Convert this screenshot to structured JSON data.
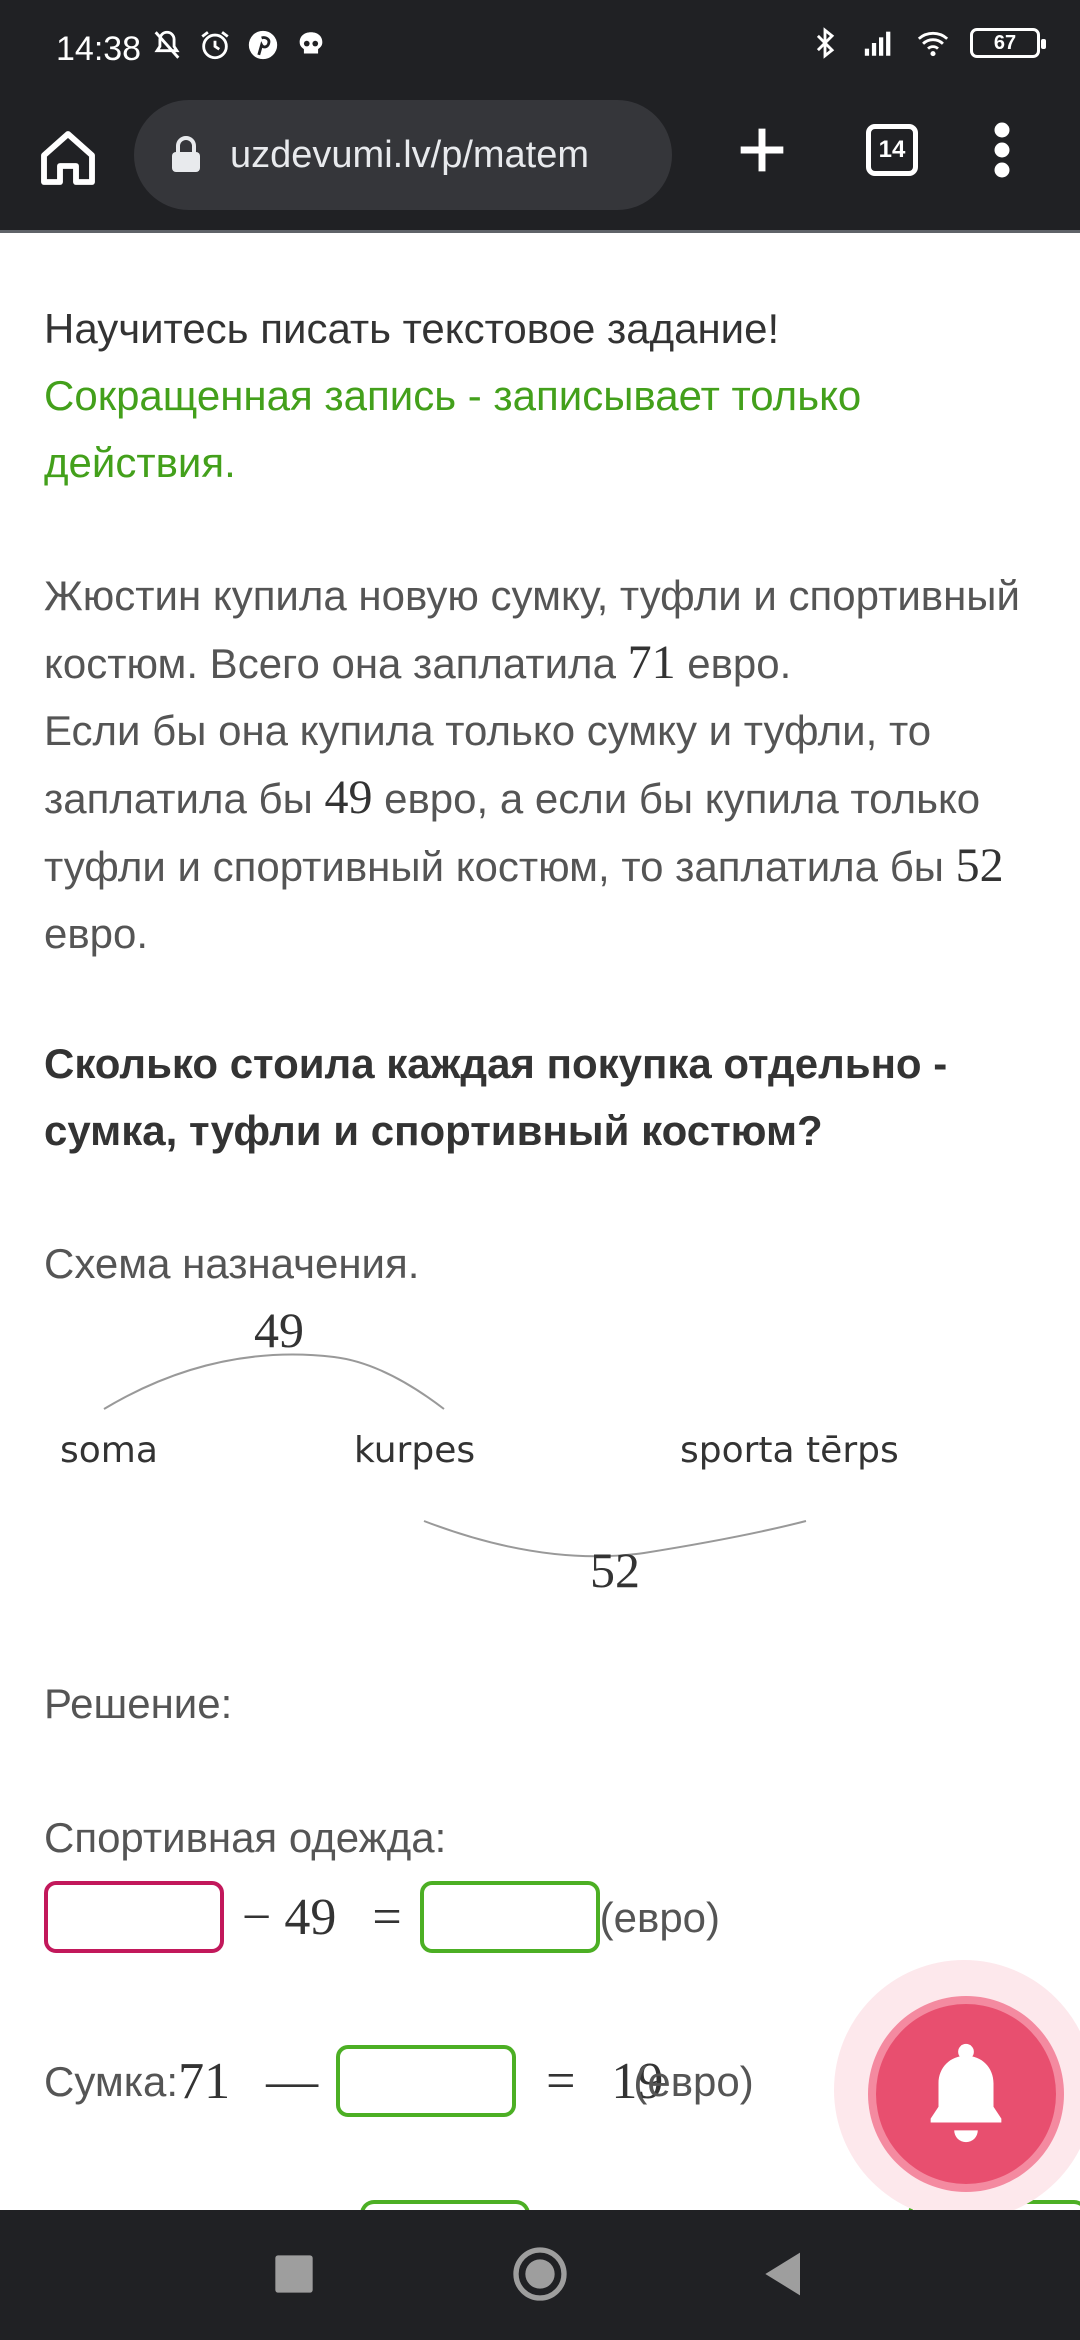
{
  "status_bar": {
    "time": "14:38",
    "battery": "67"
  },
  "browser": {
    "url": "uzdevumi.lv/p/matem",
    "tab_count": "14"
  },
  "content": {
    "title": "Научитесь писать текстовое задание!",
    "subtitle": "Сокращенная запись - записывает только действия.",
    "task": {
      "line1a": "Жюстин купила новую сумку, туфли и спортивный костюм. Всего она заплатила ",
      "total": "71",
      "line1b": " евро.",
      "line2a": "Если бы она купила только сумку и туфли, то заплатила бы ",
      "bag_shoes": "49",
      "line2b": " евро, а если бы купила только туфли и спортивный костюм, то заплатила бы ",
      "shoes_suit": "52",
      "line2c": " евро."
    },
    "question": "Сколько стоила каждая покупка отдельно - сумка, туфли и спортивный костюм?",
    "scheme_label": "Схема назначения.",
    "scheme": {
      "top_number": "49",
      "bottom_number": "52",
      "items": [
        "soma",
        "kurpes",
        "sporta tērps"
      ]
    },
    "solution_label": "Решение:",
    "sport_label": "Спортивная одежда:",
    "eq1": {
      "minus": "− 49",
      "equals": "=",
      "unit": "(евро)"
    },
    "eq2": {
      "prefix": "Сумка:",
      "total": "71",
      "minus": "—",
      "equals": "=",
      "result": "19",
      "unit": "(евро)"
    }
  },
  "colors": {
    "accent_green": "#43a01b",
    "input_pink": "#c2185b",
    "input_green": "#4caf24",
    "fab": "#e84f6f"
  },
  "icons": [
    "mute-icon",
    "alarm-icon",
    "pinterest-icon",
    "skull-icon",
    "bluetooth-icon",
    "signal-icon",
    "wifi-icon",
    "home-icon",
    "lock-icon",
    "plus-icon",
    "tabs-icon",
    "menu-icon",
    "bell-icon",
    "recents-icon",
    "home-nav-icon",
    "back-icon"
  ]
}
